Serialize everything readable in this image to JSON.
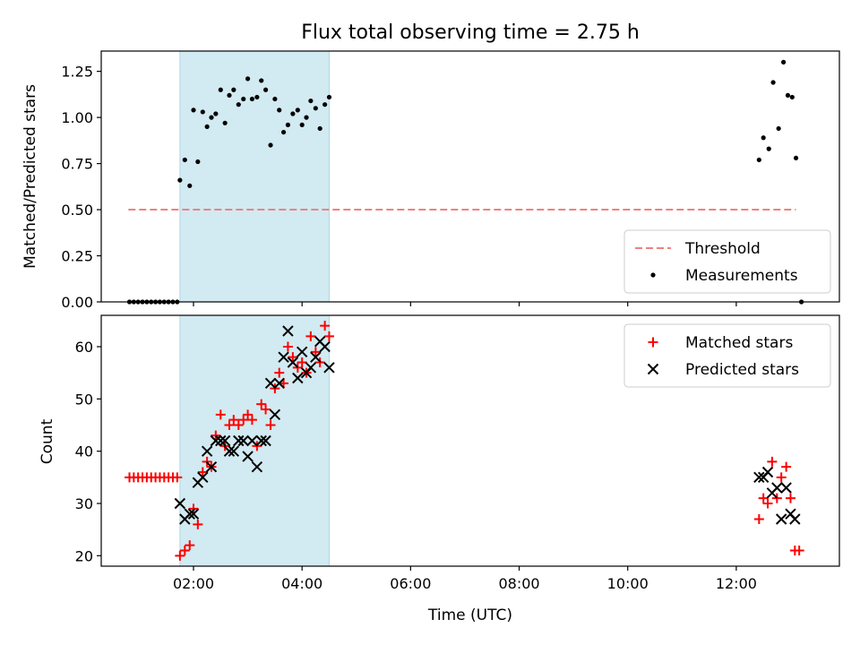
{
  "chart_data": {
    "title": "Flux total observing time = 2.75 h",
    "xlabel": "Time (UTC)",
    "x_unit": "hours UTC",
    "x_ticks": [
      {
        "value": 2,
        "label": "02:00"
      },
      {
        "value": 4,
        "label": "04:00"
      },
      {
        "value": 6,
        "label": "06:00"
      },
      {
        "value": 8,
        "label": "08:00"
      },
      {
        "value": 10,
        "label": "10:00"
      },
      {
        "value": 12,
        "label": "12:00"
      }
    ],
    "xlim": [
      0.3,
      13.9
    ],
    "shaded_span": {
      "x_start": 1.75,
      "x_end": 4.5,
      "color": "#add8e6"
    },
    "panels": [
      {
        "type": "scatter",
        "ylabel": "Matched/Predicted stars",
        "ylim": [
          0,
          1.36
        ],
        "y_ticks": [
          {
            "value": 0.0,
            "label": "0.00"
          },
          {
            "value": 0.25,
            "label": "0.25"
          },
          {
            "value": 0.5,
            "label": "0.50"
          },
          {
            "value": 0.75,
            "label": "0.75"
          },
          {
            "value": 1.0,
            "label": "1.00"
          },
          {
            "value": 1.25,
            "label": "1.25"
          }
        ],
        "legend_position": "bottom-right",
        "threshold": {
          "name": "Threshold",
          "value": 0.5,
          "x_range": [
            0.8,
            13.1
          ],
          "color": "#f08080"
        },
        "series": [
          {
            "name": "Measurements",
            "color": "#000000",
            "marker": "dot",
            "points": [
              [
                0.82,
                0
              ],
              [
                0.9,
                0
              ],
              [
                0.98,
                0
              ],
              [
                1.06,
                0
              ],
              [
                1.14,
                0
              ],
              [
                1.22,
                0
              ],
              [
                1.3,
                0
              ],
              [
                1.38,
                0
              ],
              [
                1.46,
                0
              ],
              [
                1.54,
                0
              ],
              [
                1.62,
                0
              ],
              [
                1.7,
                0
              ],
              [
                1.75,
                0.66
              ],
              [
                1.84,
                0.77
              ],
              [
                1.93,
                0.63
              ],
              [
                2.0,
                1.04
              ],
              [
                2.08,
                0.76
              ],
              [
                2.17,
                1.03
              ],
              [
                2.25,
                0.95
              ],
              [
                2.33,
                1.0
              ],
              [
                2.41,
                1.02
              ],
              [
                2.5,
                1.15
              ],
              [
                2.58,
                0.97
              ],
              [
                2.66,
                1.12
              ],
              [
                2.74,
                1.15
              ],
              [
                2.83,
                1.07
              ],
              [
                2.92,
                1.1
              ],
              [
                3.0,
                1.21
              ],
              [
                3.08,
                1.1
              ],
              [
                3.17,
                1.11
              ],
              [
                3.25,
                1.2
              ],
              [
                3.33,
                1.15
              ],
              [
                3.42,
                0.85
              ],
              [
                3.5,
                1.1
              ],
              [
                3.58,
                1.04
              ],
              [
                3.66,
                0.92
              ],
              [
                3.74,
                0.96
              ],
              [
                3.83,
                1.02
              ],
              [
                3.92,
                1.04
              ],
              [
                4.0,
                0.96
              ],
              [
                4.08,
                1.0
              ],
              [
                4.16,
                1.09
              ],
              [
                4.25,
                1.05
              ],
              [
                4.33,
                0.94
              ],
              [
                4.42,
                1.07
              ],
              [
                4.5,
                1.11
              ],
              [
                12.42,
                0.77
              ],
              [
                12.5,
                0.89
              ],
              [
                12.6,
                0.83
              ],
              [
                12.68,
                1.19
              ],
              [
                12.78,
                0.94
              ],
              [
                12.87,
                1.3
              ],
              [
                12.95,
                1.12
              ],
              [
                13.03,
                1.11
              ],
              [
                13.1,
                0.78
              ],
              [
                13.2,
                0.0
              ]
            ]
          }
        ]
      },
      {
        "type": "scatter",
        "ylabel": "Count",
        "ylim": [
          18,
          66
        ],
        "y_ticks": [
          {
            "value": 20,
            "label": "20"
          },
          {
            "value": 30,
            "label": "30"
          },
          {
            "value": 40,
            "label": "40"
          },
          {
            "value": 50,
            "label": "50"
          },
          {
            "value": 60,
            "label": "60"
          }
        ],
        "legend_position": "top-right",
        "series": [
          {
            "name": "Matched stars",
            "color": "#ff0000",
            "marker": "plus",
            "points": [
              [
                0.82,
                35
              ],
              [
                0.9,
                35
              ],
              [
                0.98,
                35
              ],
              [
                1.06,
                35
              ],
              [
                1.14,
                35
              ],
              [
                1.22,
                35
              ],
              [
                1.3,
                35
              ],
              [
                1.38,
                35
              ],
              [
                1.46,
                35
              ],
              [
                1.54,
                35
              ],
              [
                1.62,
                35
              ],
              [
                1.7,
                35
              ],
              [
                1.75,
                20
              ],
              [
                1.84,
                21
              ],
              [
                1.93,
                22
              ],
              [
                2.0,
                29
              ],
              [
                2.08,
                26
              ],
              [
                2.17,
                36
              ],
              [
                2.25,
                38
              ],
              [
                2.33,
                37
              ],
              [
                2.41,
                43
              ],
              [
                2.5,
                47
              ],
              [
                2.58,
                41
              ],
              [
                2.66,
                45
              ],
              [
                2.74,
                46
              ],
              [
                2.83,
                45
              ],
              [
                2.92,
                46
              ],
              [
                3.0,
                47
              ],
              [
                3.08,
                46
              ],
              [
                3.17,
                41
              ],
              [
                3.25,
                49
              ],
              [
                3.33,
                48
              ],
              [
                3.42,
                45
              ],
              [
                3.5,
                52
              ],
              [
                3.58,
                55
              ],
              [
                3.66,
                53
              ],
              [
                3.74,
                60
              ],
              [
                3.83,
                58
              ],
              [
                3.92,
                56
              ],
              [
                4.0,
                57
              ],
              [
                4.08,
                55
              ],
              [
                4.16,
                62
              ],
              [
                4.25,
                59
              ],
              [
                4.33,
                57
              ],
              [
                4.42,
                64
              ],
              [
                4.5,
                62
              ],
              [
                12.42,
                27
              ],
              [
                12.5,
                31
              ],
              [
                12.58,
                30
              ],
              [
                12.66,
                38
              ],
              [
                12.75,
                31
              ],
              [
                12.83,
                35
              ],
              [
                12.92,
                37
              ],
              [
                13.0,
                31
              ],
              [
                13.08,
                21
              ],
              [
                13.16,
                21
              ]
            ]
          },
          {
            "name": "Predicted stars",
            "color": "#000000",
            "marker": "x",
            "points": [
              [
                1.75,
                30
              ],
              [
                1.84,
                27
              ],
              [
                1.93,
                28
              ],
              [
                2.0,
                28
              ],
              [
                2.08,
                34
              ],
              [
                2.17,
                35
              ],
              [
                2.25,
                40
              ],
              [
                2.33,
                37
              ],
              [
                2.41,
                42
              ],
              [
                2.5,
                42
              ],
              [
                2.58,
                42
              ],
              [
                2.66,
                40
              ],
              [
                2.74,
                40
              ],
              [
                2.83,
                42
              ],
              [
                2.92,
                42
              ],
              [
                3.0,
                39
              ],
              [
                3.08,
                42
              ],
              [
                3.17,
                37
              ],
              [
                3.25,
                42
              ],
              [
                3.33,
                42
              ],
              [
                3.42,
                53
              ],
              [
                3.5,
                47
              ],
              [
                3.58,
                53
              ],
              [
                3.66,
                58
              ],
              [
                3.74,
                63
              ],
              [
                3.83,
                57
              ],
              [
                3.92,
                54
              ],
              [
                4.0,
                59
              ],
              [
                4.08,
                55
              ],
              [
                4.16,
                56
              ],
              [
                4.25,
                58
              ],
              [
                4.33,
                61
              ],
              [
                4.42,
                60
              ],
              [
                4.5,
                56
              ],
              [
                12.42,
                35
              ],
              [
                12.5,
                35
              ],
              [
                12.58,
                36
              ],
              [
                12.66,
                32
              ],
              [
                12.75,
                33
              ],
              [
                12.83,
                27
              ],
              [
                12.92,
                33
              ],
              [
                13.0,
                28
              ],
              [
                13.08,
                27
              ]
            ]
          }
        ]
      }
    ]
  }
}
